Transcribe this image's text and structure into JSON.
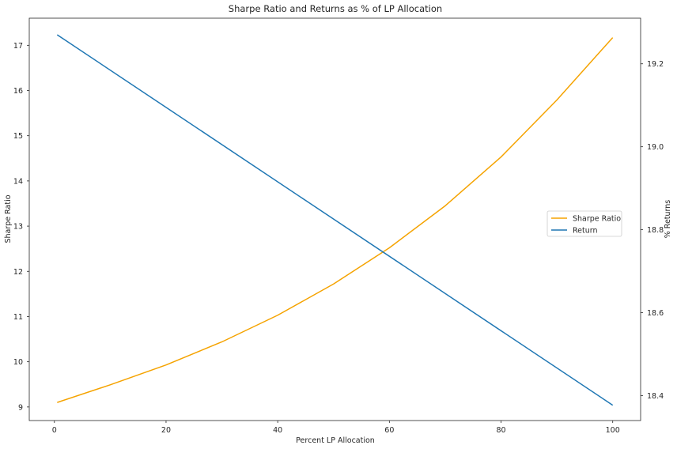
{
  "chart_data": {
    "type": "line",
    "title": "Sharpe Ratio and Returns as % of LP Allocation",
    "xlabel": "Percent LP Allocation",
    "ylabel_left": "Sharpe Ratio",
    "ylabel_right": "% Returns",
    "xlim": [
      -4.5,
      105
    ],
    "ylim_left": [
      8.7,
      17.6
    ],
    "ylim_right": [
      18.34,
      19.31
    ],
    "x_ticks": [
      "0",
      "20",
      "40",
      "60",
      "80",
      "100"
    ],
    "y_left_ticks": [
      "9",
      "10",
      "11",
      "12",
      "13",
      "14",
      "15",
      "16",
      "17"
    ],
    "y_right_ticks": [
      "18.4",
      "18.6",
      "18.8",
      "19.0",
      "19.2"
    ],
    "grid": false,
    "legend_position": "center-right",
    "series": [
      {
        "name": "Sharpe Ratio",
        "axis": "left",
        "color": "#f5a300",
        "x": [
          0.5,
          10,
          20,
          30,
          40,
          50,
          60,
          70,
          80,
          90,
          100
        ],
        "y": [
          9.1,
          9.49,
          9.93,
          10.44,
          11.03,
          11.72,
          12.52,
          13.45,
          14.53,
          15.79,
          17.17
        ]
      },
      {
        "name": "Return",
        "axis": "right",
        "color": "#1f77b4",
        "x": [
          0.5,
          100
        ],
        "y": [
          19.27,
          18.377
        ]
      }
    ]
  }
}
